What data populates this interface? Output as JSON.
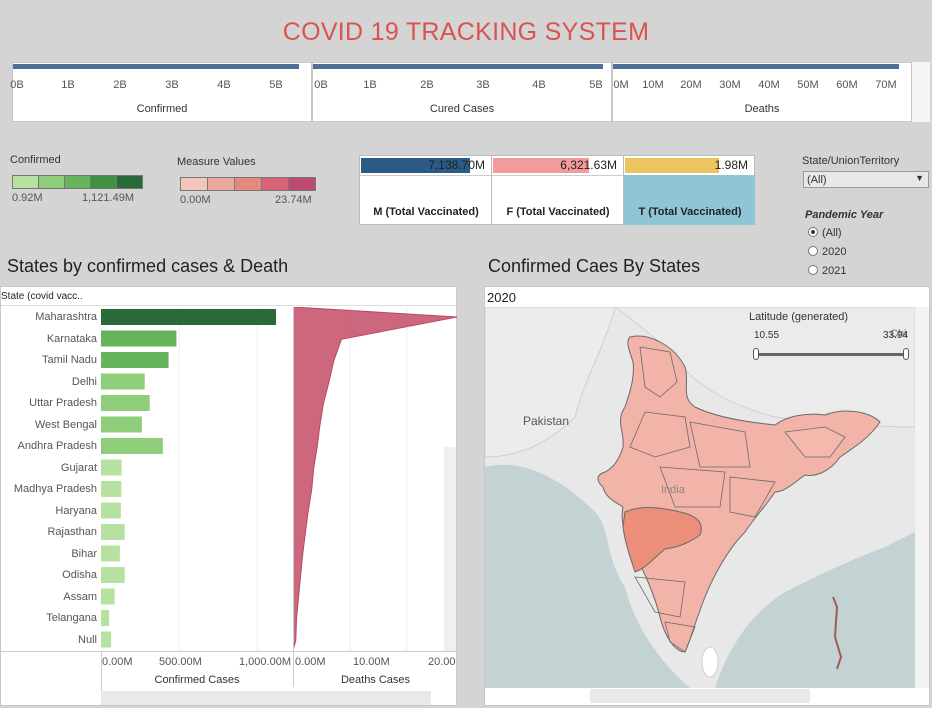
{
  "header": {
    "title": "COVID 19 TRACKING SYSTEM"
  },
  "kpis": [
    {
      "label": "Confirmed",
      "ticks": [
        "0B",
        "1B",
        "2B",
        "3B",
        "4B",
        "5B"
      ]
    },
    {
      "label": "Cured Cases",
      "ticks": [
        "0B",
        "1B",
        "2B",
        "3B",
        "4B",
        "5B"
      ]
    },
    {
      "label": "Deaths",
      "ticks": [
        "0M",
        "10M",
        "20M",
        "30M",
        "40M",
        "50M",
        "60M",
        "70M"
      ]
    }
  ],
  "legend_confirmed": {
    "title": "Confirmed",
    "min": "0.92M",
    "max": "1,121.49M",
    "colors": [
      "#b7e1a1",
      "#8fcd7a",
      "#66b55c",
      "#3f9145",
      "#2a6a3a"
    ]
  },
  "legend_measure": {
    "title": "Measure Values",
    "min": "0.00M",
    "max": "23.74M",
    "colors": [
      "#f2c6bd",
      "#eaa89c",
      "#e3897e",
      "#d66474",
      "#bd4a70"
    ]
  },
  "vaccinated": [
    {
      "value": "7,138.70M",
      "label": "M (Total Vaccinated)",
      "color": "#2c5a86",
      "fill": 0.84
    },
    {
      "value": "6,321.63M",
      "label": "F (Total Vaccinated)",
      "color": "#f49a9a",
      "fill": 0.74
    },
    {
      "value": "1.98M",
      "label": "T (Total Vaccinated)",
      "color": "#edc560",
      "fill": 0.72
    }
  ],
  "filters": {
    "state_title": "State/UnionTerritory",
    "state_value": "(All)",
    "year_title": "Pandemic Year",
    "year_options": [
      "(All)",
      "2020",
      "2021"
    ],
    "year_selected": 0
  },
  "bar_section": {
    "title": "States by confirmed cases & Death",
    "row_header": "State (covid vacc..",
    "x_label_left": "Confirmed Cases",
    "x_label_right": "Deaths Cases",
    "ticks_left": [
      "0.00M",
      "500.00M",
      "1,000.00M"
    ],
    "ticks_right": [
      "0.00M",
      "10.00M",
      "20.00"
    ]
  },
  "map_section": {
    "title": "Confirmed Caes By States",
    "year_label": "2020",
    "slider_title": "Latitude (generated)",
    "slider_min": "10.55",
    "slider_max": "33.94",
    "labels": {
      "pakistan": "Pakistan",
      "india": "India",
      "china": "Chi"
    }
  },
  "chart_data": [
    {
      "type": "bar",
      "title": "States by confirmed cases & Death",
      "xlabel": "Confirmed Cases",
      "categories": [
        "Maharashtra",
        "Karnataka",
        "Tamil Nadu",
        "Delhi",
        "Uttar Pradesh",
        "West Bengal",
        "Andhra Pradesh",
        "Gujarat",
        "Madhya Pradesh",
        "Haryana",
        "Rajasthan",
        "Bihar",
        "Odisha",
        "Assam",
        "Telangana",
        "Null"
      ],
      "values": [
        1121.49,
        483,
        433,
        280,
        312,
        262,
        396,
        132,
        130,
        127,
        152,
        121,
        152,
        87,
        52,
        65
      ],
      "xlim": [
        0,
        1300
      ]
    },
    {
      "type": "area",
      "xlabel": "Deaths Cases",
      "categories": [
        "Maharashtra",
        "Karnataka",
        "Tamil Nadu",
        "Delhi",
        "Uttar Pradesh",
        "West Bengal",
        "Andhra Pradesh",
        "Gujarat",
        "Madhya Pradesh",
        "Haryana",
        "Rajasthan",
        "Bihar",
        "Odisha",
        "Assam",
        "Telangana",
        "Null"
      ],
      "values": [
        23.74,
        7.0,
        5.9,
        5.2,
        4.4,
        3.9,
        3.5,
        3.0,
        2.7,
        2.2,
        1.8,
        1.4,
        1.1,
        0.8,
        0.5,
        0.4
      ],
      "xlim": [
        0,
        25
      ]
    }
  ]
}
